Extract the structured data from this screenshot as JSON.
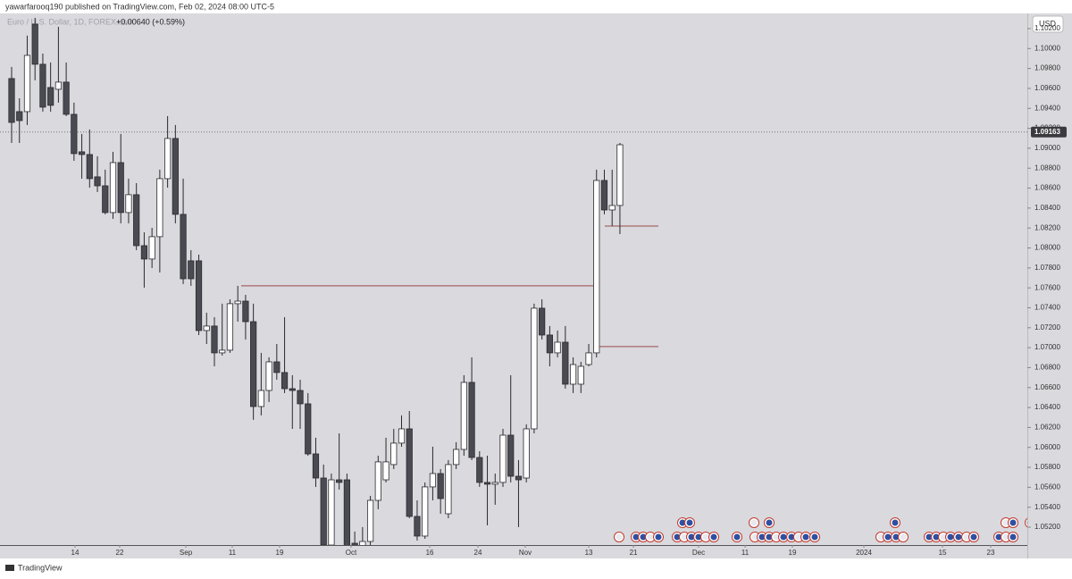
{
  "chart_data": {
    "type": "candlestick",
    "header": "yawarfarooq190 published on TradingView.com, Feb 02, 2024 08:00 UTC-5",
    "symbol": "Euro / U.S. Dollar, 1D, FOREX.com",
    "change": "+0.00640 (+0.59%)",
    "currency": "USD",
    "brand": "TradingView",
    "up_color": "#ffffff",
    "down_color": "#4a4a52",
    "open": [
      1.09699,
      1.09367,
      1.09367,
      1.10245,
      1.09842,
      1.09609,
      1.09591,
      1.09663,
      1.0934,
      1.08964,
      1.08937,
      1.08713,
      1.08623,
      1.08355,
      1.08856,
      1.08355,
      1.08534,
      1.08023,
      1.07889,
      1.08113,
      1.08695,
      1.09098,
      1.08337,
      1.07871,
      1.07871,
      1.07172,
      1.07217,
      1.06948,
      1.06975,
      1.07441,
      1.07467,
      1.07261,
      1.0641,
      1.06571,
      1.06858,
      1.06751,
      1.06589,
      1.06571,
      1.06437,
      1.05935,
      1.05693,
      1.05021,
      1.05675,
      1.05675,
      1.05039,
      1.05003,
      1.05057,
      1.05469,
      1.05675,
      1.05828,
      1.06043,
      1.06186,
      1.05308,
      1.05111,
      1.05604,
      1.05738,
      1.05335,
      1.05828,
      1.0598,
      1.06652,
      1.05899,
      1.05649,
      1.05631,
      1.05649,
      1.06123,
      1.05711,
      1.05693,
      1.06186,
      1.07396,
      1.07127,
      1.06948,
      1.07055,
      1.06634,
      1.06634,
      1.06831,
      1.06948,
      1.08677,
      1.08381,
      1.08426
    ],
    "high": [
      1.09815,
      1.09501,
      1.10129,
      1.10308,
      1.09949,
      1.0986,
      1.10218,
      1.0986,
      1.09457,
      1.09143,
      1.09188,
      1.08919,
      1.08785,
      1.08964,
      1.09143,
      1.08695,
      1.0865,
      1.08157,
      1.08202,
      1.08785,
      1.09322,
      1.09233,
      1.08695,
      1.07978,
      1.07933,
      1.07351,
      1.07306,
      1.07441,
      1.07485,
      1.0762,
      1.0753,
      1.07441,
      1.06948,
      1.06903,
      1.07037,
      1.07306,
      1.06724,
      1.06679,
      1.06545,
      1.06097,
      1.05828,
      1.05738,
      1.06141,
      1.05738,
      1.05156,
      1.05201,
      1.05514,
      1.05917,
      1.06097,
      1.06186,
      1.06321,
      1.06365,
      1.05469,
      1.05649,
      1.06007,
      1.05783,
      1.05873,
      1.06052,
      1.06724,
      1.06903,
      1.05962,
      1.05917,
      1.05738,
      1.06186,
      1.06724,
      1.05873,
      1.06231,
      1.07441,
      1.07485,
      1.07217,
      1.07172,
      1.07217,
      1.06903,
      1.06858,
      1.07037,
      1.08785,
      1.08785,
      1.08785,
      1.09053
    ],
    "low": [
      1.09053,
      1.09053,
      1.09233,
      1.09681,
      1.09367,
      1.09367,
      1.09457,
      1.09322,
      1.08874,
      1.08695,
      1.08605,
      1.08561,
      1.08337,
      1.08292,
      1.08247,
      1.08247,
      1.07978,
      1.07602,
      1.07799,
      1.07754,
      1.08605,
      1.08247,
      1.07638,
      1.0762,
      1.07127,
      1.07037,
      1.06813,
      1.06921,
      1.06948,
      1.07261,
      1.07082,
      1.06276,
      1.06321,
      1.06455,
      1.06679,
      1.06545,
      1.06186,
      1.06186,
      1.05917,
      1.05604,
      1.04977,
      1.04977,
      1.05577,
      1.04932,
      1.04977,
      1.04977,
      1.05003,
      1.0538,
      1.05649,
      1.05783,
      1.06007,
      1.0529,
      1.05066,
      1.05084,
      1.05469,
      1.05335,
      1.0529,
      1.05783,
      1.05917,
      1.05873,
      1.05604,
      1.05219,
      1.05425,
      1.05604,
      1.05649,
      1.05201,
      1.05649,
      1.06141,
      1.07082,
      1.06813,
      1.06903,
      1.06589,
      1.06545,
      1.06545,
      1.06813,
      1.06903,
      1.08337,
      1.0822,
      1.08139
    ],
    "close": [
      1.09259,
      1.09277,
      1.09931,
      1.09842,
      1.09412,
      1.0943,
      1.09663,
      1.0934,
      1.08946,
      1.08937,
      1.08695,
      1.08623,
      1.08355,
      1.08856,
      1.08355,
      1.08534,
      1.08023,
      1.07889,
      1.08113,
      1.08695,
      1.09098,
      1.08337,
      1.07691,
      1.07691,
      1.07172,
      1.07217,
      1.06948,
      1.06975,
      1.07441,
      1.07467,
      1.07261,
      1.0641,
      1.06571,
      1.06858,
      1.06751,
      1.06589,
      1.06571,
      1.06437,
      1.05935,
      1.05693,
      1.05021,
      1.05675,
      1.05649,
      1.04977,
      1.05003,
      1.05057,
      1.05469,
      1.05855,
      1.05855,
      1.06043,
      1.06186,
      1.05308,
      1.05111,
      1.05604,
      1.05738,
      1.05487,
      1.05828,
      1.0598,
      1.06652,
      1.05899,
      1.05649,
      1.05631,
      1.05649,
      1.06123,
      1.05711,
      1.05675,
      1.06186,
      1.07396,
      1.07127,
      1.06948,
      1.07055,
      1.06634,
      1.06831,
      1.06813,
      1.06948,
      1.08677,
      1.08381,
      1.08426,
      1.09035
    ],
    "last_price": 1.09163,
    "level_lines": [
      {
        "value": 1.0762,
        "start": 29.44,
        "end": 74.57
      },
      {
        "value": 1.07011,
        "start": 75.26,
        "end": 82.93
      },
      {
        "value": 1.0822,
        "start": 76.06,
        "end": 82.93
      }
    ],
    "xlim": [
      -1.49,
      130.24
    ],
    "xticks": [
      {
        "value": 8.13,
        "label": "14"
      },
      {
        "value": 13.86,
        "label": "22"
      },
      {
        "value": 22.34,
        "label": "Sep"
      },
      {
        "value": 28.29,
        "label": "11"
      },
      {
        "value": 34.36,
        "label": "19"
      },
      {
        "value": 43.53,
        "label": "Oct"
      },
      {
        "value": 53.61,
        "label": "16"
      },
      {
        "value": 59.79,
        "label": "24"
      },
      {
        "value": 65.86,
        "label": "Nov"
      },
      {
        "value": 74.0,
        "label": "13"
      },
      {
        "value": 79.73,
        "label": "21"
      },
      {
        "value": 88.09,
        "label": "Dec"
      },
      {
        "value": 94.05,
        "label": "11"
      },
      {
        "value": 100.11,
        "label": "19"
      },
      {
        "value": 109.28,
        "label": "2024"
      },
      {
        "value": 119.36,
        "label": "15"
      },
      {
        "value": 125.54,
        "label": "23"
      }
    ],
    "ylim": [
      1.05021,
      1.10352
    ],
    "yticks": [
      {
        "value": 1.052,
        "label": "1.05200"
      },
      {
        "value": 1.054,
        "label": "1.05400"
      },
      {
        "value": 1.056,
        "label": "1.05600"
      },
      {
        "value": 1.058,
        "label": "1.05800"
      },
      {
        "value": 1.06,
        "label": "1.06000"
      },
      {
        "value": 1.062,
        "label": "1.06200"
      },
      {
        "value": 1.064,
        "label": "1.06400"
      },
      {
        "value": 1.066,
        "label": "1.06600"
      },
      {
        "value": 1.068,
        "label": "1.06800"
      },
      {
        "value": 1.07,
        "label": "1.07000"
      },
      {
        "value": 1.072,
        "label": "1.07200"
      },
      {
        "value": 1.074,
        "label": "1.07400"
      },
      {
        "value": 1.076,
        "label": "1.07600"
      },
      {
        "value": 1.078,
        "label": "1.07800"
      },
      {
        "value": 1.08,
        "label": "1.08000"
      },
      {
        "value": 1.082,
        "label": "1.08200"
      },
      {
        "value": 1.084,
        "label": "1.08400"
      },
      {
        "value": 1.086,
        "label": "1.08600"
      },
      {
        "value": 1.088,
        "label": "1.08800"
      },
      {
        "value": 1.09,
        "label": "1.09000"
      },
      {
        "value": 1.092,
        "label": "1.09200"
      },
      {
        "value": 1.094,
        "label": "1.09400"
      },
      {
        "value": 1.096,
        "label": "1.09600"
      },
      {
        "value": 1.098,
        "label": "1.09800"
      },
      {
        "value": 1.1,
        "label": "1.10000"
      },
      {
        "value": 1.102,
        "label": "1.10200"
      }
    ]
  }
}
